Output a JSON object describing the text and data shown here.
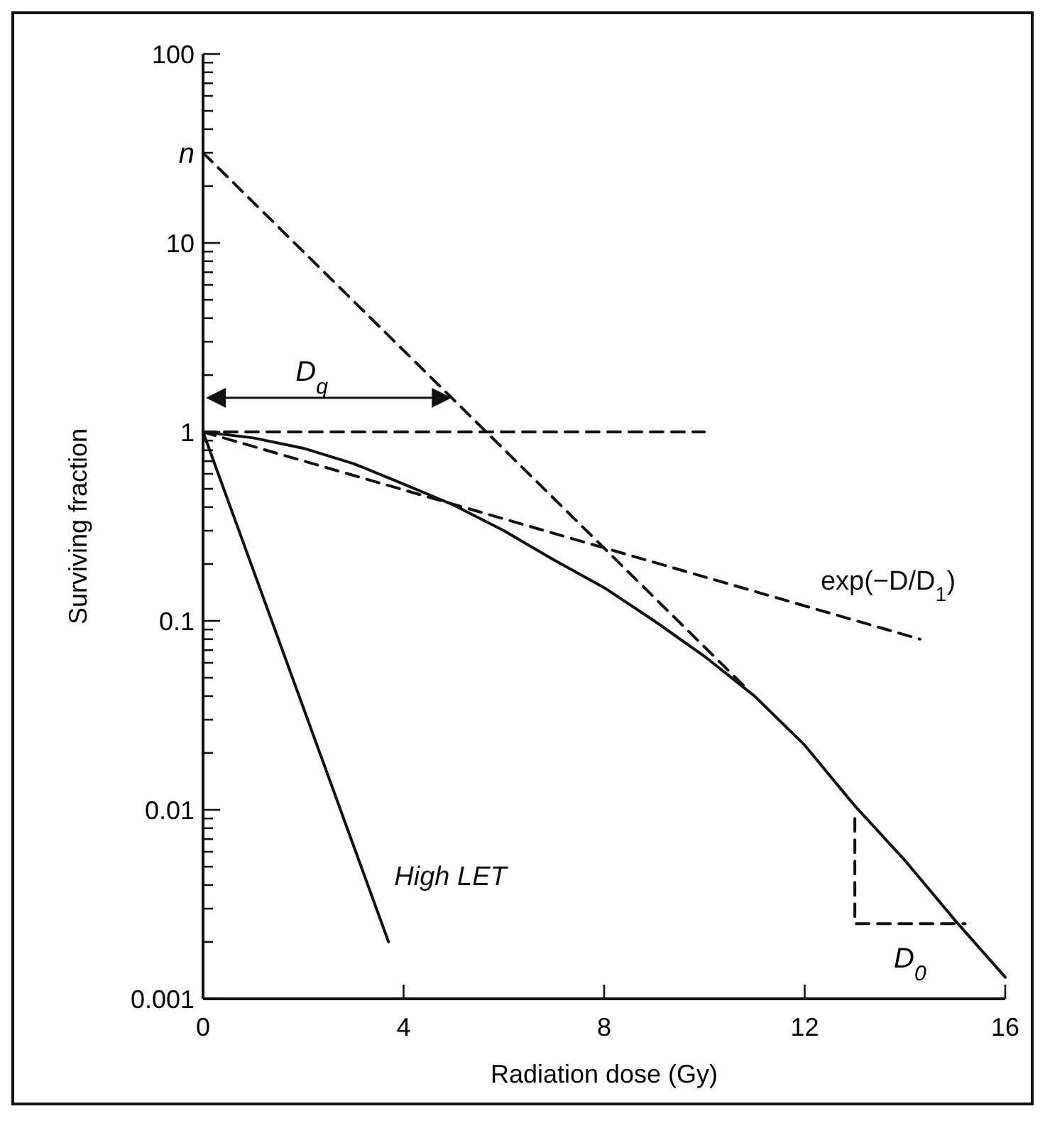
{
  "chart_data": {
    "type": "line",
    "xlabel": "Radiation dose (Gy)",
    "ylabel": "Surviving fraction",
    "log": "y",
    "xlim": [
      0,
      16
    ],
    "ylim": [
      0.001,
      100
    ],
    "xticks": [
      0,
      4,
      8,
      12,
      16
    ],
    "yticks": [
      0.001,
      {
        "value": 0.002,
        "label": null
      },
      {
        "value": 0.003,
        "label": null
      },
      {
        "value": 0.004,
        "label": null
      },
      {
        "value": 0.005,
        "label": null
      },
      {
        "value": 0.006,
        "label": null
      },
      {
        "value": 0.007,
        "label": null
      },
      {
        "value": 0.008,
        "label": null
      },
      {
        "value": 0.009,
        "label": null
      },
      0.01,
      {
        "value": 0.02,
        "label": null
      },
      {
        "value": 0.03,
        "label": null
      },
      {
        "value": 0.04,
        "label": null
      },
      {
        "value": 0.05,
        "label": null
      },
      {
        "value": 0.06,
        "label": null
      },
      {
        "value": 0.07,
        "label": null
      },
      {
        "value": 0.08,
        "label": null
      },
      {
        "value": 0.09,
        "label": null
      },
      0.1,
      {
        "value": 0.2,
        "label": null
      },
      {
        "value": 0.3,
        "label": null
      },
      {
        "value": 0.4,
        "label": null
      },
      {
        "value": 0.5,
        "label": null
      },
      {
        "value": 0.6,
        "label": null
      },
      {
        "value": 0.7,
        "label": null
      },
      {
        "value": 0.8,
        "label": null
      },
      {
        "value": 0.9,
        "label": null
      },
      1,
      {
        "value": 2,
        "label": null
      },
      {
        "value": 3,
        "label": null
      },
      {
        "value": 4,
        "label": null
      },
      {
        "value": 5,
        "label": null
      },
      {
        "value": 6,
        "label": null
      },
      {
        "value": 7,
        "label": null
      },
      {
        "value": 8,
        "label": null
      },
      {
        "value": 9,
        "label": null
      },
      10,
      {
        "value": 20,
        "label": null
      },
      {
        "value": 30,
        "label": null
      },
      {
        "value": 40,
        "label": null
      },
      {
        "value": 50,
        "label": null
      },
      {
        "value": 60,
        "label": null
      },
      {
        "value": 70,
        "label": null
      },
      {
        "value": 80,
        "label": null
      },
      {
        "value": 90,
        "label": null
      },
      100
    ],
    "marker": "none",
    "series": [
      {
        "color": "#111111",
        "line_style": "solid",
        "x": [
          0,
          1,
          2,
          3,
          4,
          5,
          6,
          7,
          8,
          9,
          10,
          11,
          12,
          13,
          14,
          15,
          16
        ],
        "values": [
          1,
          0.93,
          0.82,
          0.68,
          0.53,
          0.41,
          0.3,
          0.21,
          0.15,
          0.1,
          0.065,
          0.04,
          0.022,
          0.0105,
          0.0054,
          0.0026,
          0.0013
        ]
      },
      {
        "name": "High LET",
        "color": "#111111",
        "line_style": "solid",
        "x": [
          0,
          3.7
        ],
        "values": [
          1,
          0.002
        ]
      },
      {
        "color": "#111111",
        "line_style": "dashed",
        "x": [
          0,
          10.8
        ],
        "values": [
          30,
          0.045
        ]
      },
      {
        "name": "exp(−D/D$_{1}$)",
        "color": "#111111",
        "line_style": "dashed",
        "x": [
          0,
          14.3
        ],
        "values": [
          1,
          0.08
        ]
      },
      {
        "color": "#111111",
        "line_style": "dashed",
        "x": [
          0,
          10
        ],
        "values": [
          1,
          1
        ]
      },
      {
        "color": "#111111",
        "line_style": "dashed",
        "x": [
          13,
          13,
          15.2
        ],
        "values": [
          0.009,
          0.0025,
          0.0025
        ]
      }
    ],
    "annotations": [
      {
        "text": "n",
        "x": 0,
        "y": 30
      },
      "D$_{q}$",
      {
        "text": "D$_{0}$",
        "x": 14.1,
        "y": 0.0025
      }
    ]
  }
}
